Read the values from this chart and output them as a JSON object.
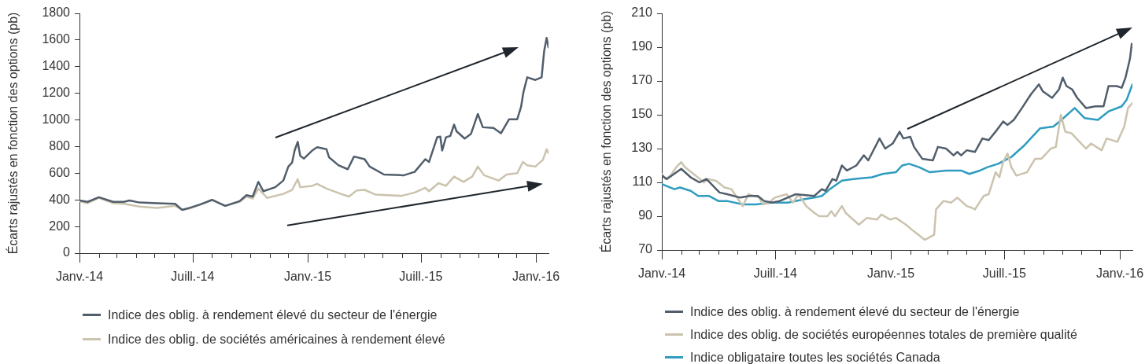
{
  "chart_data": [
    {
      "type": "line",
      "ylabel": "Écarts rajustés en fonction des options (pb)",
      "legend": "bottom",
      "marker": "none",
      "xlim": [
        "2014-01-01",
        "2016-01-21"
      ],
      "xticks": [
        {
          "value": "2014-01",
          "label": "Janv.-14"
        },
        {
          "value": "2014-02",
          "label": null
        },
        {
          "value": "2014-03",
          "label": null
        },
        {
          "value": "2014-04",
          "label": null
        },
        {
          "value": "2014-05",
          "label": null
        },
        {
          "value": "2014-06",
          "label": null
        },
        {
          "value": "2014-07",
          "label": "Juill.-14"
        },
        {
          "value": "2014-08",
          "label": null
        },
        {
          "value": "2014-09",
          "label": null
        },
        {
          "value": "2014-10",
          "label": null
        },
        {
          "value": "2014-11",
          "label": null
        },
        {
          "value": "2014-12",
          "label": null
        },
        {
          "value": "2015-01",
          "label": "Janv.-15"
        },
        {
          "value": "2015-02",
          "label": null
        },
        {
          "value": "2015-03",
          "label": null
        },
        {
          "value": "2015-04",
          "label": null
        },
        {
          "value": "2015-05",
          "label": null
        },
        {
          "value": "2015-06",
          "label": null
        },
        {
          "value": "2015-07",
          "label": "Juill.-15"
        },
        {
          "value": "2015-08",
          "label": null
        },
        {
          "value": "2015-09",
          "label": null
        },
        {
          "value": "2015-10",
          "label": null
        },
        {
          "value": "2015-11",
          "label": null
        },
        {
          "value": "2015-12",
          "label": null
        },
        {
          "value": "2016-01",
          "label": "Janv.-16"
        }
      ],
      "ylim": [
        0,
        1800
      ],
      "yticks": [
        0,
        200,
        400,
        600,
        800,
        1000,
        1200,
        1400,
        1600,
        1800
      ],
      "series": [
        {
          "name": "Indice des oblig. à rendement élevé du secteur de l'énergie",
          "color": "#515e6b",
          "x": [
            "2014-01-01",
            "2014-01-14",
            "2014-02-01",
            "2014-02-24",
            "2014-03-13",
            "2014-03-22",
            "2014-04-07",
            "2014-05-05",
            "2014-06-03",
            "2014-06-14",
            "2014-06-26",
            "2014-07-13",
            "2014-08-01",
            "2014-08-22",
            "2014-09-14",
            "2014-09-25",
            "2014-10-05",
            "2014-10-14",
            "2014-10-22",
            "2014-11-10",
            "2014-11-23",
            "2014-12-01",
            "2014-12-07",
            "2014-12-11",
            "2014-12-16",
            "2014-12-20",
            "2014-12-26",
            "2015-01-08",
            "2015-01-16",
            "2015-01-31",
            "2015-02-04",
            "2015-02-19",
            "2015-03-06",
            "2015-03-16",
            "2015-04-02",
            "2015-04-10",
            "2015-05-03",
            "2015-05-31",
            "2015-06-04",
            "2015-06-21",
            "2015-07-08",
            "2015-07-14",
            "2015-07-27",
            "2015-08-01",
            "2015-08-04",
            "2015-08-10",
            "2015-08-17",
            "2015-08-23",
            "2015-08-27",
            "2015-09-09",
            "2015-09-19",
            "2015-09-30",
            "2015-10-08",
            "2015-10-25",
            "2015-11-06",
            "2015-11-19",
            "2015-12-02",
            "2015-12-08",
            "2015-12-12",
            "2015-12-18",
            "2015-12-31",
            "2016-01-10",
            "2016-01-14",
            "2016-01-18",
            "2016-01-21"
          ],
          "values": [
            395,
            385,
            420,
            385,
            385,
            395,
            380,
            375,
            370,
            325,
            340,
            365,
            400,
            355,
            390,
            435,
            425,
            535,
            465,
            495,
            545,
            650,
            680,
            770,
            835,
            730,
            710,
            770,
            795,
            780,
            720,
            660,
            630,
            725,
            705,
            650,
            590,
            585,
            585,
            610,
            705,
            685,
            870,
            875,
            770,
            870,
            880,
            965,
            915,
            860,
            895,
            1045,
            945,
            940,
            900,
            1005,
            1005,
            1095,
            1210,
            1320,
            1300,
            1320,
            1515,
            1615,
            1545
          ]
        },
        {
          "name": "Indice des oblig. de sociétés américaines à rendement élevé",
          "color": "#cbc3ae",
          "x": [
            "2014-01-01",
            "2014-01-14",
            "2014-02-01",
            "2014-02-24",
            "2014-03-13",
            "2014-04-07",
            "2014-05-05",
            "2014-06-03",
            "2014-06-14",
            "2014-06-26",
            "2014-07-13",
            "2014-08-01",
            "2014-08-22",
            "2014-09-14",
            "2014-09-25",
            "2014-10-05",
            "2014-10-14",
            "2014-10-28",
            "2014-11-23",
            "2014-12-07",
            "2014-12-16",
            "2014-12-20",
            "2015-01-08",
            "2015-01-16",
            "2015-01-31",
            "2015-02-23",
            "2015-03-08",
            "2015-03-20",
            "2015-04-02",
            "2015-04-19",
            "2015-05-31",
            "2015-06-21",
            "2015-07-08",
            "2015-07-14",
            "2015-07-29",
            "2015-08-10",
            "2015-08-23",
            "2015-09-07",
            "2015-09-21",
            "2015-09-30",
            "2015-10-10",
            "2015-11-02",
            "2015-11-15",
            "2015-12-02",
            "2015-12-11",
            "2015-12-18",
            "2015-12-31",
            "2016-01-12",
            "2016-01-18",
            "2016-01-21"
          ],
          "values": [
            390,
            375,
            415,
            375,
            370,
            350,
            340,
            355,
            325,
            335,
            365,
            400,
            355,
            385,
            425,
            410,
            485,
            415,
            445,
            475,
            555,
            495,
            505,
            520,
            485,
            445,
            425,
            470,
            475,
            440,
            430,
            455,
            490,
            465,
            525,
            505,
            575,
            535,
            575,
            650,
            585,
            545,
            590,
            600,
            685,
            660,
            650,
            700,
            780,
            750
          ]
        }
      ]
    },
    {
      "type": "line",
      "ylabel": "Écarts rajustés en fonction des options (pb)",
      "legend": "bottom",
      "marker": "none",
      "xlim": [
        "2014-01-01",
        "2016-01-21"
      ],
      "xticks": [
        {
          "value": "2014-01",
          "label": "Janv.-14"
        },
        {
          "value": "2014-02",
          "label": null
        },
        {
          "value": "2014-03",
          "label": null
        },
        {
          "value": "2014-04",
          "label": null
        },
        {
          "value": "2014-05",
          "label": null
        },
        {
          "value": "2014-06",
          "label": null
        },
        {
          "value": "2014-07",
          "label": "Juill.-14"
        },
        {
          "value": "2014-08",
          "label": null
        },
        {
          "value": "2014-09",
          "label": null
        },
        {
          "value": "2014-10",
          "label": null
        },
        {
          "value": "2014-11",
          "label": null
        },
        {
          "value": "2014-12",
          "label": null
        },
        {
          "value": "2015-01",
          "label": "Janv.-15"
        },
        {
          "value": "2015-02",
          "label": null
        },
        {
          "value": "2015-03",
          "label": null
        },
        {
          "value": "2015-04",
          "label": null
        },
        {
          "value": "2015-05",
          "label": null
        },
        {
          "value": "2015-06",
          "label": null
        },
        {
          "value": "2015-07",
          "label": "Juill.-15"
        },
        {
          "value": "2015-08",
          "label": null
        },
        {
          "value": "2015-09",
          "label": null
        },
        {
          "value": "2015-10",
          "label": null
        },
        {
          "value": "2015-11",
          "label": null
        },
        {
          "value": "2015-12",
          "label": null
        },
        {
          "value": "2016-01",
          "label": "Janv.-16"
        }
      ],
      "ylim": [
        70,
        210
      ],
      "yticks": [
        70,
        90,
        110,
        130,
        150,
        170,
        190,
        210
      ],
      "series": [
        {
          "name": "Indice des oblig. à rendement élevé du secteur de l'énergie",
          "color": "#515e6b",
          "x": [
            "2014-01-01",
            "2014-01-09",
            "2014-02-01",
            "2014-02-16",
            "2014-03-02",
            "2014-03-13",
            "2014-04-03",
            "2014-04-15",
            "2014-05-06",
            "2014-05-21",
            "2014-06-03",
            "2014-06-13",
            "2014-06-26",
            "2014-07-08",
            "2014-08-02",
            "2014-09-01",
            "2014-09-13",
            "2014-09-19",
            "2014-09-30",
            "2014-10-06",
            "2014-10-15",
            "2014-10-23",
            "2014-11-07",
            "2014-11-19",
            "2014-11-26",
            "2014-12-14",
            "2014-12-23",
            "2015-01-04",
            "2015-01-15",
            "2015-01-21",
            "2015-02-01",
            "2015-02-07",
            "2015-02-20",
            "2015-03-09",
            "2015-03-17",
            "2015-03-30",
            "2015-04-11",
            "2015-04-17",
            "2015-04-23",
            "2015-05-02",
            "2015-05-15",
            "2015-05-27",
            "2015-06-06",
            "2015-06-19",
            "2015-06-29",
            "2015-07-06",
            "2015-07-16",
            "2015-07-29",
            "2015-08-12",
            "2015-08-25",
            "2015-08-31",
            "2015-09-15",
            "2015-09-26",
            "2015-10-02",
            "2015-10-08",
            "2015-10-17",
            "2015-10-25",
            "2015-11-08",
            "2015-11-23",
            "2015-12-06",
            "2015-12-14",
            "2015-12-27",
            "2016-01-04",
            "2016-01-10",
            "2016-01-17",
            "2016-01-20",
            "2016-01-21"
          ],
          "values": [
            114,
            112,
            118,
            113,
            110,
            112,
            104,
            103,
            101,
            102,
            102,
            99,
            98,
            99,
            103,
            102,
            106,
            105,
            112,
            111,
            120,
            117,
            120,
            126,
            123,
            136,
            130,
            133,
            140,
            136,
            137,
            131,
            124,
            123,
            131,
            130,
            126,
            128,
            126,
            129,
            128,
            136,
            135,
            141,
            146,
            144,
            147,
            154,
            162,
            168,
            164,
            160,
            165,
            172,
            167,
            165,
            160,
            154,
            155,
            155,
            167,
            167,
            166,
            172,
            183,
            192,
            190
          ]
        },
        {
          "name": "Indice des oblig. de sociétés européennes totales de première qualité",
          "color": "#cbc3ae",
          "x": [
            "2014-01-01",
            "2014-01-07",
            "2014-01-15",
            "2014-01-24",
            "2014-02-01",
            "2014-02-07",
            "2014-02-24",
            "2014-03-09",
            "2014-03-15",
            "2014-03-28",
            "2014-04-11",
            "2014-04-22",
            "2014-05-10",
            "2014-05-19",
            "2014-06-05",
            "2014-06-11",
            "2014-06-21",
            "2014-06-30",
            "2014-07-19",
            "2014-07-29",
            "2014-08-07",
            "2014-08-19",
            "2014-09-01",
            "2014-09-09",
            "2014-09-22",
            "2014-09-28",
            "2014-10-04",
            "2014-10-15",
            "2014-10-21",
            "2014-11-11",
            "2014-11-24",
            "2014-12-10",
            "2014-12-17",
            "2014-12-31",
            "2015-01-09",
            "2015-01-25",
            "2015-02-07",
            "2015-02-24",
            "2015-03-11",
            "2015-03-14",
            "2015-03-26",
            "2015-04-07",
            "2015-04-17",
            "2015-05-02",
            "2015-05-10",
            "2015-05-15",
            "2015-05-29",
            "2015-06-06",
            "2015-06-17",
            "2015-06-23",
            "2015-06-29",
            "2015-07-06",
            "2015-07-12",
            "2015-07-20",
            "2015-08-06",
            "2015-08-19",
            "2015-08-29",
            "2015-09-13",
            "2015-09-21",
            "2015-09-29",
            "2015-10-06",
            "2015-10-16",
            "2015-11-08",
            "2015-11-16",
            "2015-12-03",
            "2015-12-11",
            "2015-12-28",
            "2016-01-08",
            "2016-01-14",
            "2016-01-21"
          ],
          "values": [
            115,
            112,
            114,
            119,
            122,
            119,
            114,
            110,
            112,
            111,
            107,
            106,
            96,
            103,
            101,
            97,
            98,
            101,
            103,
            98,
            103,
            96,
            92,
            90,
            90,
            93,
            90,
            96,
            92,
            85,
            89,
            88,
            91,
            88,
            89,
            85,
            81,
            76,
            79,
            94,
            99,
            98,
            101,
            96,
            95,
            94,
            102,
            103,
            116,
            113,
            122,
            127,
            119,
            114,
            116,
            124,
            124,
            130,
            131,
            150,
            140,
            139,
            130,
            133,
            129,
            136,
            134,
            143,
            154,
            157
          ]
        },
        {
          "name": "Indice obligataire toutes les sociétés Canada",
          "color": "#2f9cc0",
          "x": [
            "2014-01-01",
            "2014-01-21",
            "2014-01-30",
            "2014-02-16",
            "2014-02-28",
            "2014-03-17",
            "2014-04-01",
            "2014-04-15",
            "2014-05-10",
            "2014-05-31",
            "2014-06-26",
            "2014-07-21",
            "2014-08-15",
            "2014-09-01",
            "2014-09-13",
            "2014-09-26",
            "2014-10-15",
            "2014-11-02",
            "2014-12-02",
            "2014-12-19",
            "2015-01-09",
            "2015-01-19",
            "2015-01-30",
            "2015-02-15",
            "2015-03-04",
            "2015-03-30",
            "2015-04-23",
            "2015-05-06",
            "2015-05-23",
            "2015-06-04",
            "2015-06-21",
            "2015-07-12",
            "2015-08-02",
            "2015-08-27",
            "2015-09-17",
            "2015-09-30",
            "2015-10-21",
            "2015-11-06",
            "2015-11-27",
            "2015-12-14",
            "2016-01-04",
            "2016-01-12",
            "2016-01-21"
          ],
          "values": [
            109,
            106,
            107,
            105,
            102,
            102,
            99,
            99,
            97,
            97,
            98,
            98,
            100,
            101,
            102,
            106,
            111,
            112,
            113,
            115,
            116,
            120,
            121,
            119,
            116,
            117,
            117,
            115,
            117,
            119,
            121,
            125,
            132,
            142,
            143,
            147,
            154,
            148,
            147,
            152,
            155,
            159,
            168
          ]
        }
      ]
    }
  ]
}
